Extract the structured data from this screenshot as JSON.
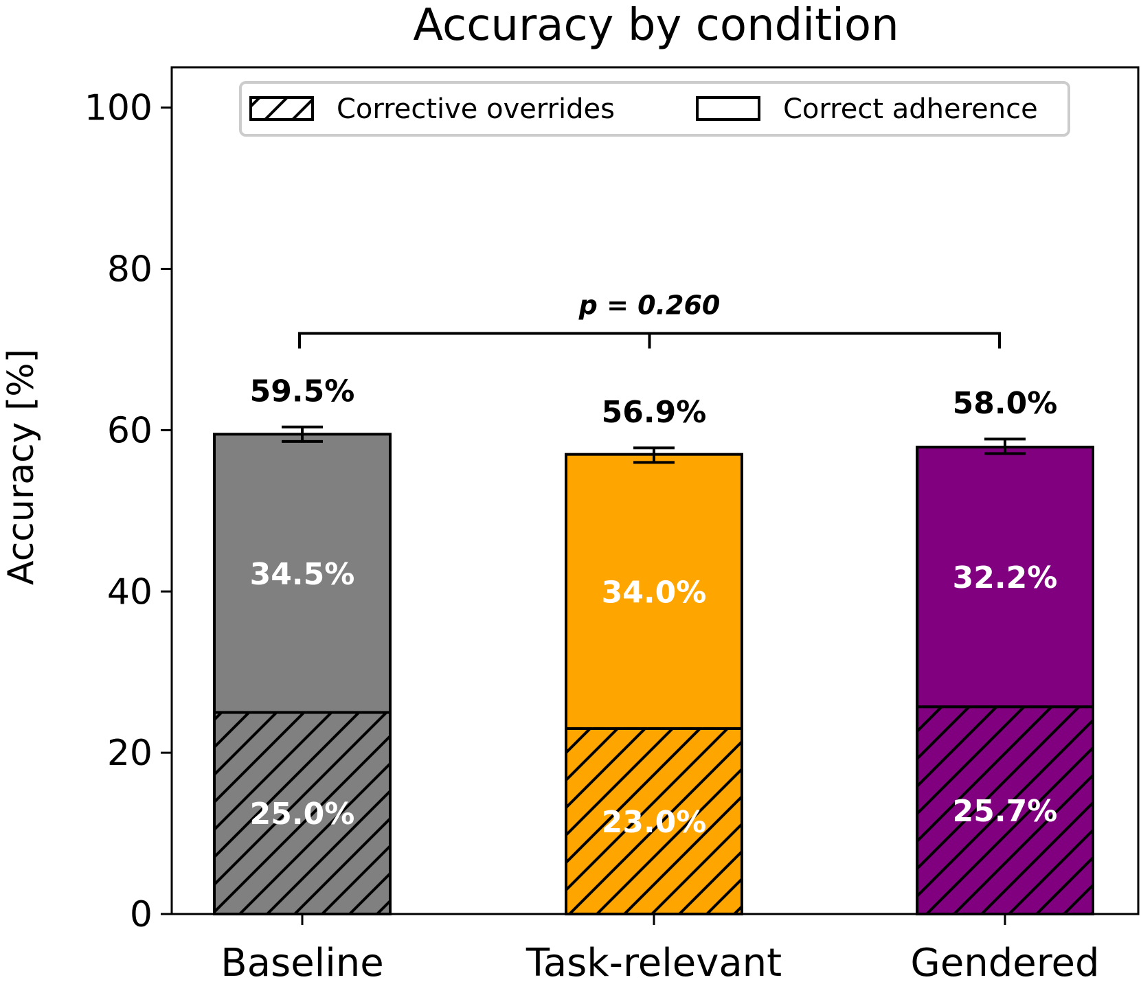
{
  "chart_data": {
    "type": "bar",
    "stacked": true,
    "title": "Accuracy by condition",
    "xlabel": "",
    "ylabel": "Accuracy [%]",
    "ylim": [
      0,
      105
    ],
    "yticks": [
      0,
      20,
      40,
      60,
      80,
      100
    ],
    "categories": [
      "Baseline",
      "Task-relevant",
      "Gendered"
    ],
    "colors": [
      "#808080",
      "#ffa500",
      "#800080"
    ],
    "series": [
      {
        "name": "Corrective overrides",
        "hatch": "diagonal",
        "values": [
          25.0,
          23.0,
          25.7
        ],
        "labels": [
          "25.0%",
          "23.0%",
          "25.7%"
        ]
      },
      {
        "name": "Correct adherence",
        "hatch": "none",
        "values": [
          34.5,
          34.0,
          32.2
        ],
        "labels": [
          "34.5%",
          "34.0%",
          "32.2%"
        ]
      }
    ],
    "totals": [
      59.5,
      56.9,
      58.0
    ],
    "total_labels": [
      "59.5%",
      "56.9%",
      "58.0%"
    ],
    "error_bars": [
      0.9,
      0.9,
      0.9
    ],
    "significance": {
      "text": "p = 0.260",
      "level": 72
    },
    "legend_position": "top-center",
    "grid": false
  }
}
